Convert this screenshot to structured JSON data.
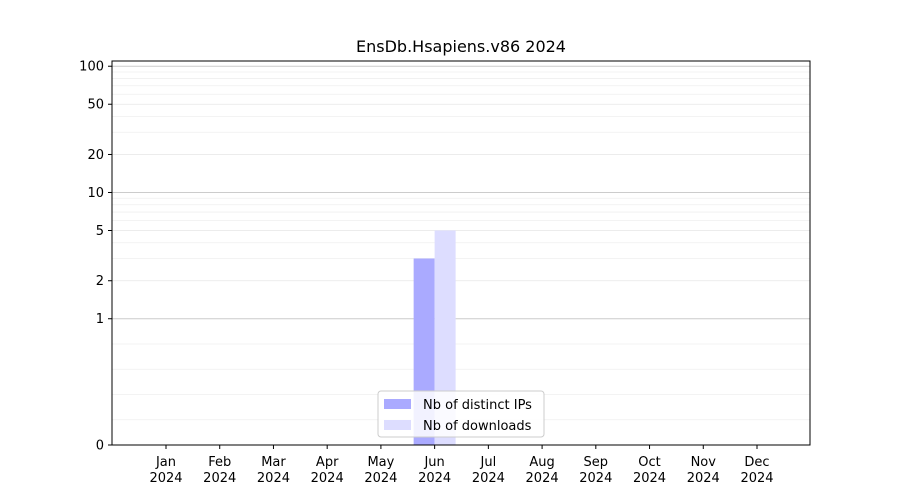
{
  "chart_data": {
    "type": "bar",
    "title": "EnsDb.Hsapiens.v86 2024",
    "xlabel": "",
    "ylabel": "",
    "categories": [
      [
        "Jan",
        "2024"
      ],
      [
        "Feb",
        "2024"
      ],
      [
        "Mar",
        "2024"
      ],
      [
        "Apr",
        "2024"
      ],
      [
        "May",
        "2024"
      ],
      [
        "Jun",
        "2024"
      ],
      [
        "Jul",
        "2024"
      ],
      [
        "Aug",
        "2024"
      ],
      [
        "Sep",
        "2024"
      ],
      [
        "Oct",
        "2024"
      ],
      [
        "Nov",
        "2024"
      ],
      [
        "Dec",
        "2024"
      ]
    ],
    "series": [
      {
        "name": "Nb of distinct IPs",
        "color": "#aaaaff",
        "values": [
          0,
          0,
          0,
          0,
          0,
          3,
          0,
          0,
          0,
          0,
          0,
          0
        ]
      },
      {
        "name": "Nb of downloads",
        "color": "#ddddff",
        "values": [
          0,
          0,
          0,
          0,
          0,
          5,
          0,
          0,
          0,
          0,
          0,
          0
        ]
      }
    ],
    "yscale": "symlog",
    "ylim": [
      0,
      110
    ],
    "yticks": [
      {
        "value": 0,
        "label": "0"
      },
      {
        "value": 1,
        "label": "1"
      },
      {
        "value": 2,
        "label": "2"
      },
      {
        "value": 5,
        "label": "5"
      },
      {
        "value": 10,
        "label": "10"
      },
      {
        "value": 20,
        "label": "20"
      },
      {
        "value": 50,
        "label": "50"
      },
      {
        "value": 100,
        "label": "100"
      }
    ],
    "grid": true,
    "legend_position": "bottom-center"
  }
}
